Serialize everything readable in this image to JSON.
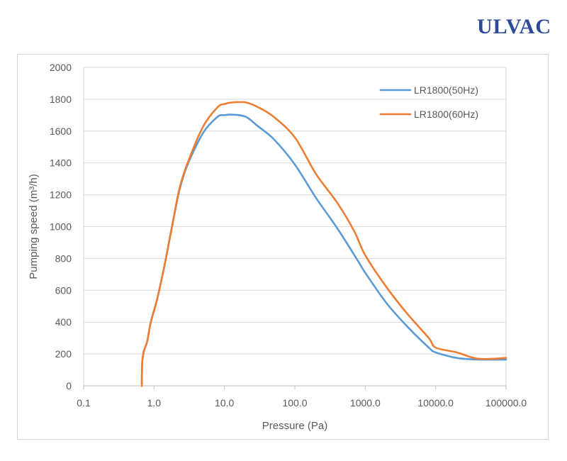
{
  "logo": {
    "text": "ULVAC"
  },
  "chart_data": {
    "type": "line",
    "xlabel": "Pressure (Pa)",
    "ylabel": "Pumping speed (m³/h)",
    "x_scale": "log",
    "xlim": [
      0.1,
      100000
    ],
    "ylim": [
      0,
      2000
    ],
    "x_ticks": [
      0.1,
      1,
      10,
      100,
      1000,
      10000,
      100000
    ],
    "x_tick_labels": [
      "0.1",
      "1.0",
      "10.0",
      "100.0",
      "1000.0",
      "10000.0",
      "100000.0"
    ],
    "y_ticks": [
      0,
      200,
      400,
      600,
      800,
      1000,
      1200,
      1400,
      1600,
      1800,
      2000
    ],
    "y_tick_labels": [
      "0",
      "200",
      "400",
      "600",
      "800",
      "1000",
      "1200",
      "1400",
      "1600",
      "1800",
      "2000"
    ],
    "grid": "horizontal",
    "legend_position": "top-right",
    "series": [
      {
        "name": "LR1800(50Hz)",
        "color": "#5b9bd5",
        "points": [
          [
            0.67,
            0
          ],
          [
            0.68,
            150
          ],
          [
            0.72,
            220
          ],
          [
            0.8,
            280
          ],
          [
            0.9,
            400
          ],
          [
            1.1,
            540
          ],
          [
            1.4,
            750
          ],
          [
            1.8,
            1000
          ],
          [
            2.3,
            1230
          ],
          [
            3.0,
            1390
          ],
          [
            5.0,
            1590
          ],
          [
            8.0,
            1690
          ],
          [
            10,
            1700
          ],
          [
            13,
            1703
          ],
          [
            20,
            1690
          ],
          [
            30,
            1630
          ],
          [
            50,
            1550
          ],
          [
            100,
            1390
          ],
          [
            200,
            1180
          ],
          [
            400,
            990
          ],
          [
            800,
            780
          ],
          [
            1000,
            710
          ],
          [
            2000,
            520
          ],
          [
            4000,
            370
          ],
          [
            8000,
            240
          ],
          [
            10000,
            210
          ],
          [
            20000,
            175
          ],
          [
            40000,
            165
          ],
          [
            100000,
            165
          ]
        ]
      },
      {
        "name": "LR1800(60Hz)",
        "color": "#ed7d31",
        "points": [
          [
            0.67,
            0
          ],
          [
            0.68,
            150
          ],
          [
            0.72,
            220
          ],
          [
            0.8,
            280
          ],
          [
            0.9,
            400
          ],
          [
            1.1,
            540
          ],
          [
            1.4,
            750
          ],
          [
            1.8,
            1000
          ],
          [
            2.3,
            1240
          ],
          [
            3.0,
            1400
          ],
          [
            5.0,
            1630
          ],
          [
            8.0,
            1750
          ],
          [
            10,
            1770
          ],
          [
            13,
            1780
          ],
          [
            20,
            1780
          ],
          [
            30,
            1750
          ],
          [
            50,
            1690
          ],
          [
            100,
            1560
          ],
          [
            200,
            1330
          ],
          [
            400,
            1150
          ],
          [
            700,
            970
          ],
          [
            1000,
            820
          ],
          [
            2000,
            620
          ],
          [
            4000,
            450
          ],
          [
            8000,
            300
          ],
          [
            10000,
            240
          ],
          [
            20000,
            210
          ],
          [
            40000,
            170
          ],
          [
            100000,
            175
          ]
        ]
      }
    ]
  }
}
